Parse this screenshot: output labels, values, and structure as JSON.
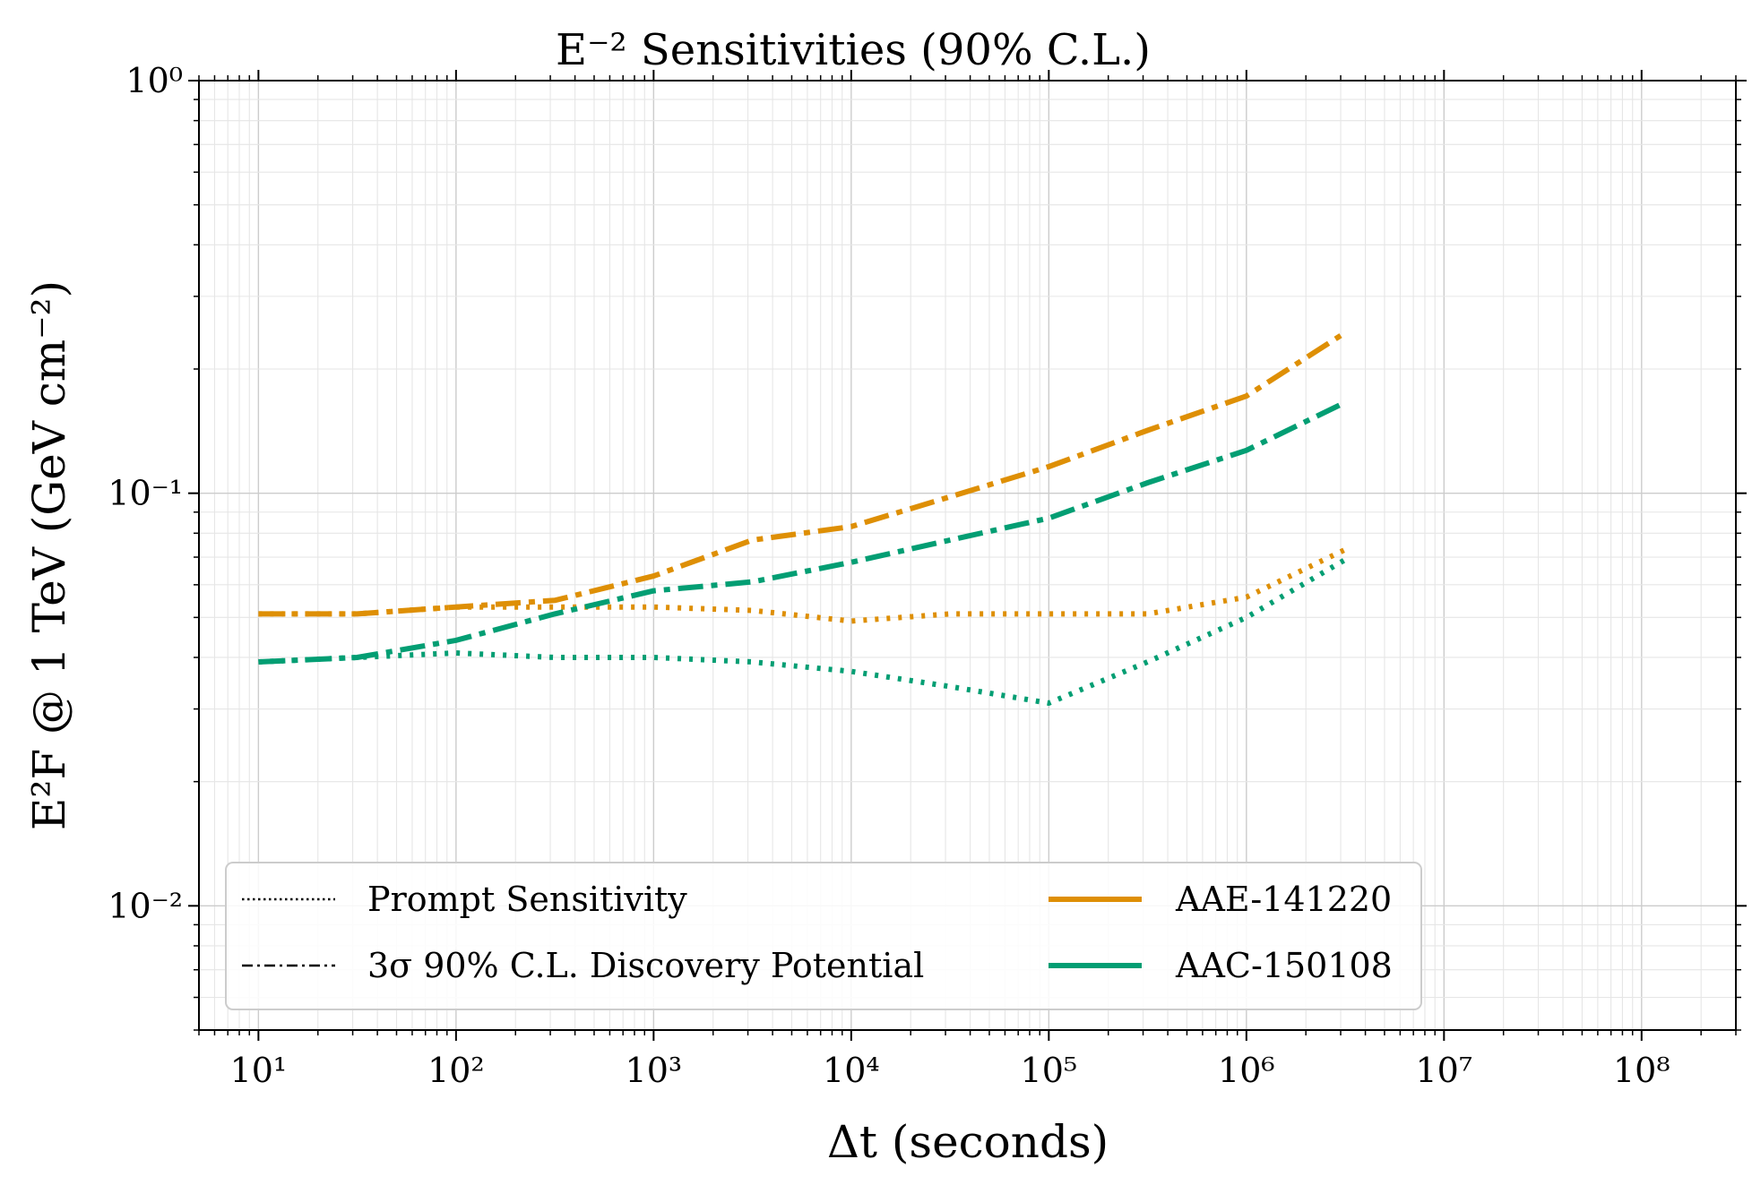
{
  "chart_data": {
    "type": "line",
    "title": "E⁻² Sensitivities (90% C.L.)",
    "xlabel": "Δt (seconds)",
    "ylabel": "E²F @ 1 TeV (GeV cm⁻²)",
    "x_scale": "log",
    "y_scale": "log",
    "xlim": [
      5,
      300000000
    ],
    "ylim": [
      0.005,
      1
    ],
    "grid": true,
    "legend_placement": "lower-left",
    "x_ticks": [
      {
        "value": 10,
        "label": "10¹"
      },
      {
        "value": 100,
        "label": "10²"
      },
      {
        "value": 1000,
        "label": "10³"
      },
      {
        "value": 10000,
        "label": "10⁴"
      },
      {
        "value": 100000,
        "label": "10⁵"
      },
      {
        "value": 1000000,
        "label": "10⁶"
      },
      {
        "value": 10000000,
        "label": "10⁷"
      },
      {
        "value": 100000000,
        "label": "10⁸"
      }
    ],
    "y_ticks": [
      {
        "value": 0.01,
        "label": "10⁻²"
      },
      {
        "value": 0.1,
        "label": "10⁻¹"
      },
      {
        "value": 1,
        "label": "10⁰"
      }
    ],
    "x": [
      10,
      31.6,
      100,
      316,
      1000,
      3160,
      10000,
      31600,
      100000,
      316000,
      1000000,
      3160000
    ],
    "series": [
      {
        "source": "AAE-141220",
        "style": "dotted",
        "color": "#de8f05",
        "values": [
          0.051,
          0.051,
          0.053,
          0.053,
          0.053,
          0.052,
          0.049,
          0.051,
          0.051,
          0.051,
          0.056,
          0.073
        ]
      },
      {
        "source": "AAE-141220",
        "style": "dashdot",
        "color": "#de8f05",
        "values": [
          0.051,
          0.051,
          0.053,
          0.055,
          0.063,
          0.077,
          0.083,
          0.098,
          0.116,
          0.142,
          0.172,
          0.245
        ]
      },
      {
        "source": "AAC-150108",
        "style": "dotted",
        "color": "#029e73",
        "values": [
          0.039,
          0.04,
          0.041,
          0.04,
          0.04,
          0.039,
          0.037,
          0.034,
          0.031,
          0.039,
          0.05,
          0.069
        ]
      },
      {
        "source": "AAC-150108",
        "style": "dashdot",
        "color": "#029e73",
        "values": [
          0.039,
          0.04,
          0.044,
          0.051,
          0.058,
          0.061,
          0.068,
          0.077,
          0.087,
          0.106,
          0.127,
          0.166
        ]
      }
    ],
    "legend": {
      "styles": [
        {
          "label": "Prompt Sensitivity",
          "style": "dotted"
        },
        {
          "label": "3σ 90% C.L. Discovery Potential",
          "style": "dashdot"
        }
      ],
      "sources": [
        {
          "label": "AAE-141220",
          "color": "#de8f05"
        },
        {
          "label": "AAC-150108",
          "color": "#029e73"
        }
      ]
    }
  }
}
